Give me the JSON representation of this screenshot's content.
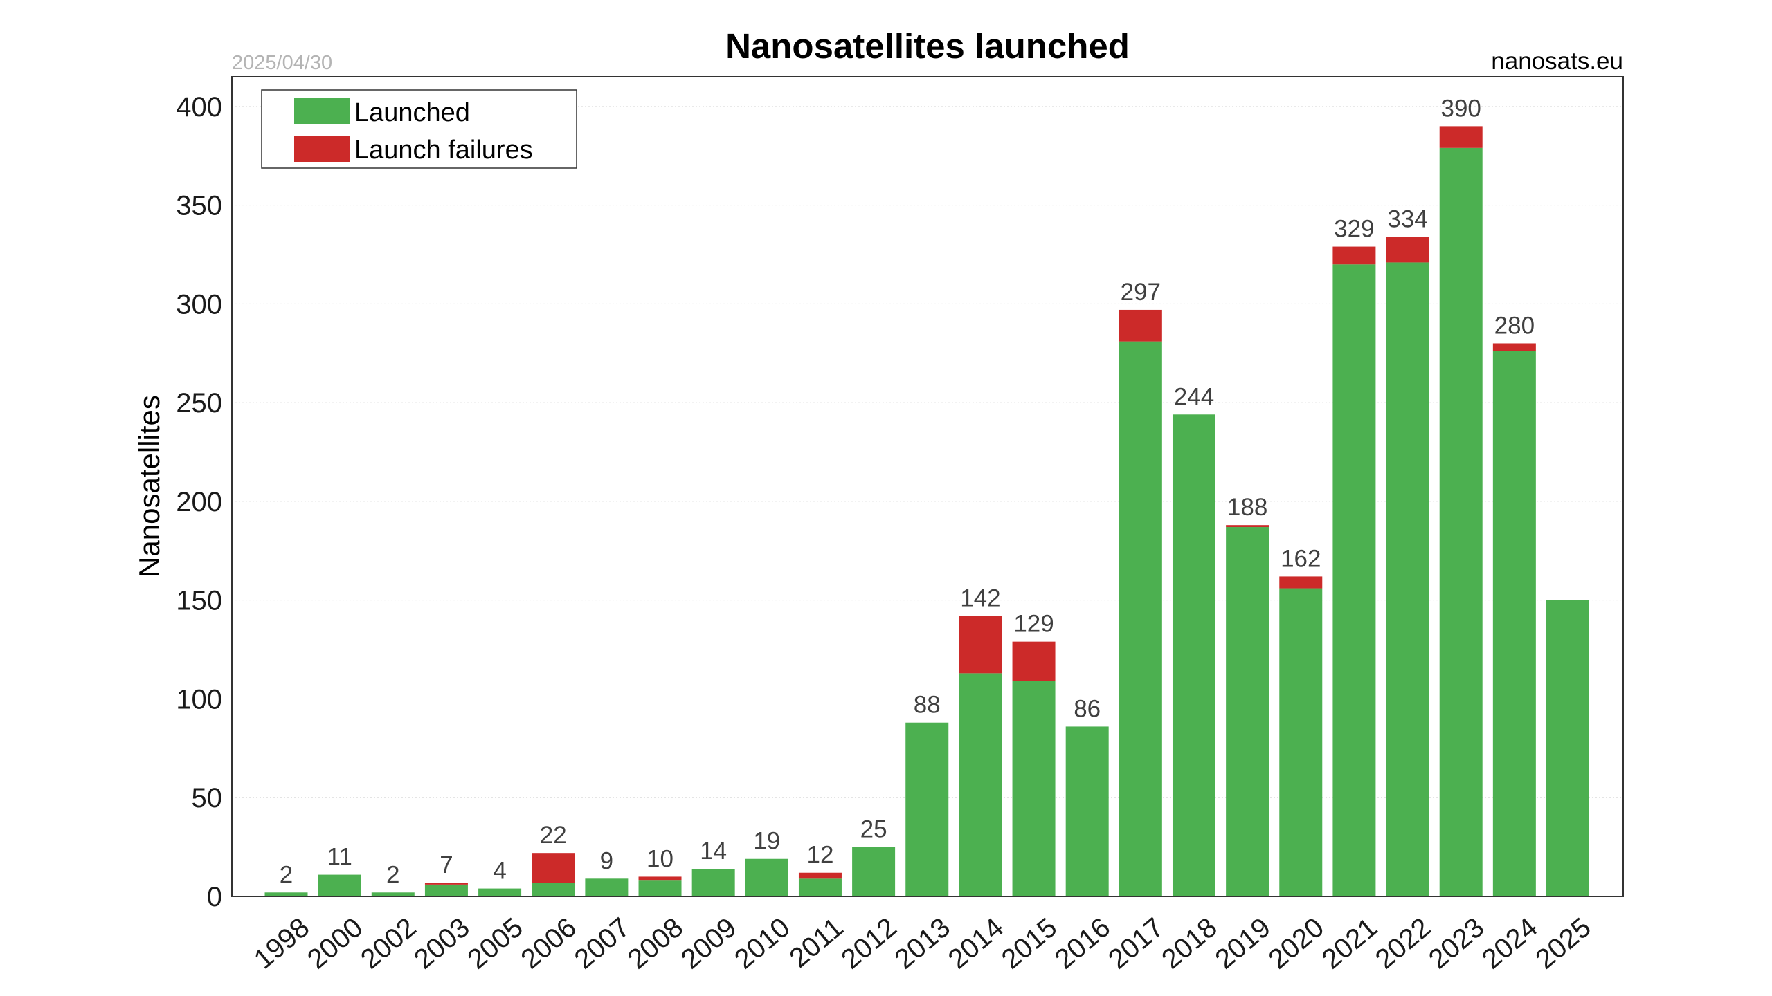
{
  "chart_data": {
    "type": "bar",
    "stacked": true,
    "title": "Nanosatellites launched",
    "date": "2025/04/30",
    "source": "nanosats.eu",
    "xlabel": "",
    "ylabel": "Nanosatellites",
    "ylim": [
      0,
      415
    ],
    "yticks": [
      0,
      50,
      100,
      150,
      200,
      250,
      300,
      350,
      400
    ],
    "grid": true,
    "legend_position": "top-left",
    "categories": [
      "1998",
      "2000",
      "2002",
      "2003",
      "2005",
      "2006",
      "2007",
      "2008",
      "2009",
      "2010",
      "2011",
      "2012",
      "2013",
      "2014",
      "2015",
      "2016",
      "2017",
      "2018",
      "2019",
      "2020",
      "2021",
      "2022",
      "2023",
      "2024",
      "2025"
    ],
    "series": [
      {
        "name": "Launched",
        "color": "#4cb050",
        "values": [
          2,
          11,
          2,
          6,
          4,
          7,
          9,
          8,
          14,
          19,
          9,
          25,
          88,
          113,
          109,
          86,
          281,
          244,
          187,
          156,
          320,
          321,
          379,
          276,
          150
        ]
      },
      {
        "name": "Launch failures",
        "color": "#cc2a29",
        "values": [
          0,
          0,
          0,
          1,
          0,
          15,
          0,
          2,
          0,
          0,
          3,
          0,
          0,
          29,
          20,
          0,
          16,
          0,
          1,
          6,
          9,
          13,
          11,
          4,
          0
        ]
      }
    ],
    "totals": [
      "2",
      "11",
      "2",
      "7",
      "4",
      "22",
      "9",
      "10",
      "14",
      "19",
      "12",
      "25",
      "88",
      "142",
      "129",
      "86",
      "297",
      "244",
      "188",
      "162",
      "329",
      "334",
      "390",
      "280",
      ""
    ]
  }
}
